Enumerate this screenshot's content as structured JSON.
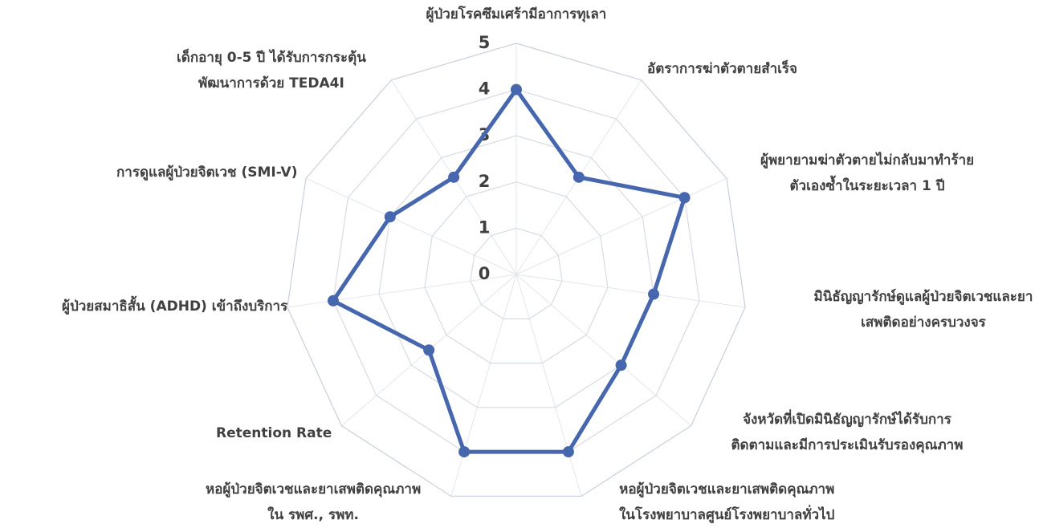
{
  "chart_data": {
    "type": "radar",
    "categories": [
      "ผู้ป่วยโรคซึมเศร้ามีอาการทุเลา",
      "อัตราการฆ่าตัวตายสำเร็จ",
      "ผู้พยายามฆ่าตัวตายไม่กลับมาทำร้าย\nตัวเองซ้ำในระยะเวลา 1 ปี",
      "มินิธัญญารักษ์ดูแลผู้ป่วยจิตเวชและยา\nเสพติดอย่างครบวงจร",
      "จังหวัดที่เปิดมินิธัญญารักษ์ได้รับการ\nติดตามและมีการประเมินรับรองคุณภาพ",
      "หอผู้ป่วยจิตเวชและยาเสพติดคุณภาพ\nในโรงพยาบาลศูนย์โรงพยาบาลทั่วไป",
      "หอผู้ป่วยจิตเวชและยาเสพติดคุณภาพ\nใน รพศ., รพท.",
      "Retention Rate",
      "ผู้ป่วยสมาธิสั้น (ADHD) เข้าถึงบริการ",
      "การดูแลผู้ป่วยจิตเวช (SMI-V)",
      "เด็กอายุ 0-5 ปี ได้รับการกระตุ้น\nพัฒนาการด้วย TEDA4I"
    ],
    "values": [
      4,
      2.5,
      4,
      3,
      3,
      4,
      4,
      2.5,
      4,
      3,
      2.5
    ],
    "color": "#4667ad",
    "ylim": [
      0,
      5
    ],
    "yticks": [
      0,
      1,
      2,
      3,
      4,
      5
    ],
    "grid": true
  }
}
